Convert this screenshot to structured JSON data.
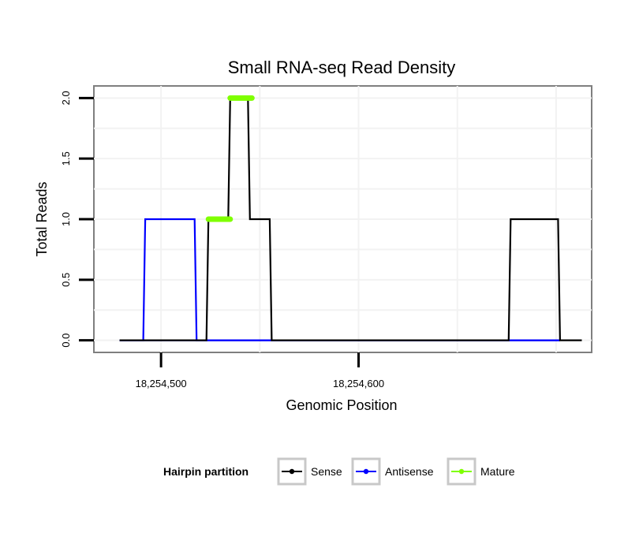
{
  "chart_data": {
    "type": "line",
    "title": "Small RNA-seq Read Density",
    "xlabel": "Genomic Position",
    "ylabel": "Total Reads",
    "xlim": [
      18254466,
      18254718
    ],
    "ylim": [
      -0.1,
      2.1
    ],
    "x_ticks": [
      {
        "value": 18254500,
        "label": "18,254,500"
      },
      {
        "value": 18254600,
        "label": "18,254,600"
      }
    ],
    "y_ticks": [
      {
        "value": 0,
        "label": "0.0"
      },
      {
        "value": 0.5,
        "label": "0.5"
      },
      {
        "value": 1,
        "label": "1.0"
      },
      {
        "value": 1.5,
        "label": "1.5"
      },
      {
        "value": 2,
        "label": "2.0"
      }
    ],
    "grid": true,
    "legend": {
      "title": "Hairpin partition",
      "position": "bottom",
      "entries": [
        "Sense",
        "Antisense",
        "Mature"
      ]
    },
    "series": [
      {
        "name": "Sense",
        "color": "#000000",
        "x": [
          18254479,
          18254523,
          18254524,
          18254534,
          18254535,
          18254544,
          18254545,
          18254555,
          18254556,
          18254676,
          18254677,
          18254701,
          18254702,
          18254713
        ],
        "y": [
          0,
          0,
          1,
          1,
          2,
          2,
          1,
          1,
          0,
          0,
          1,
          1,
          0,
          0
        ]
      },
      {
        "name": "Antisense",
        "color": "#0000ff",
        "x": [
          18254479,
          18254541,
          18254541,
          18254542,
          18254542,
          18254702
        ],
        "y": [
          0,
          0,
          0,
          0,
          0,
          0
        ]
      },
      {
        "name": "Antisense",
        "color": "#0000ff",
        "x": [
          18254479,
          18254491,
          18254492,
          18254517,
          18254518,
          18254550,
          18254676,
          18254677,
          18254701,
          18254702
        ],
        "y": [
          0,
          0,
          1,
          1,
          0,
          0,
          0,
          0,
          0,
          0
        ]
      }
    ],
    "mature_segments": [
      {
        "name": "Mature",
        "color": "#7fff00",
        "x": [
          18254524,
          18254535
        ],
        "y": 1
      },
      {
        "name": "Mature",
        "color": "#7fff00",
        "x": [
          18254535,
          18254546
        ],
        "y": 2
      }
    ]
  }
}
